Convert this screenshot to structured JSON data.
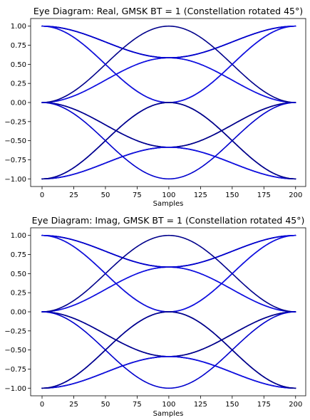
{
  "chart_data": [
    {
      "type": "line",
      "title": "Eye Diagram: Real, GMSK BT = 1 (Constellation rotated 45°)",
      "xlabel": "Samples",
      "ylabel": "",
      "xlim": [
        -9,
        208
      ],
      "ylim": [
        -1.1,
        1.1
      ],
      "x_ticks": [
        0,
        25,
        50,
        75,
        100,
        125,
        150,
        175,
        200
      ],
      "y_ticks": [
        1.0,
        0.75,
        0.5,
        0.25,
        0.0,
        -0.25,
        -0.5,
        -0.75,
        -1.0
      ],
      "y_tick_labels": [
        "1.00",
        "0.75",
        "0.50",
        "0.25",
        "0.00",
        "−0.25",
        "−0.50",
        "−0.75",
        "−1.00"
      ],
      "samples_per_trace": 200,
      "symbol_period": 100,
      "levels": [
        -1,
        -0.5858,
        0,
        0.5858,
        1
      ],
      "colors": [
        "#00008b",
        "#0000cd",
        "#1010e0"
      ],
      "grid": false
    },
    {
      "type": "line",
      "title": "Eye Diagram: Imag, GMSK BT = 1 (Constellation rotated 45°)",
      "xlabel": "Samples",
      "ylabel": "",
      "xlim": [
        -9,
        208
      ],
      "ylim": [
        -1.1,
        1.1
      ],
      "x_ticks": [
        0,
        25,
        50,
        75,
        100,
        125,
        150,
        175,
        200
      ],
      "y_ticks": [
        1.0,
        0.75,
        0.5,
        0.25,
        0.0,
        -0.25,
        -0.5,
        -0.75,
        -1.0
      ],
      "y_tick_labels": [
        "1.00",
        "0.75",
        "0.50",
        "0.25",
        "0.00",
        "−0.25",
        "−0.50",
        "−0.75",
        "−1.00"
      ],
      "samples_per_trace": 200,
      "symbol_period": 100,
      "levels": [
        -1,
        -0.5858,
        0,
        0.5858,
        1
      ],
      "colors": [
        "#00008b",
        "#0000cd",
        "#1010e0"
      ],
      "grid": false
    }
  ]
}
